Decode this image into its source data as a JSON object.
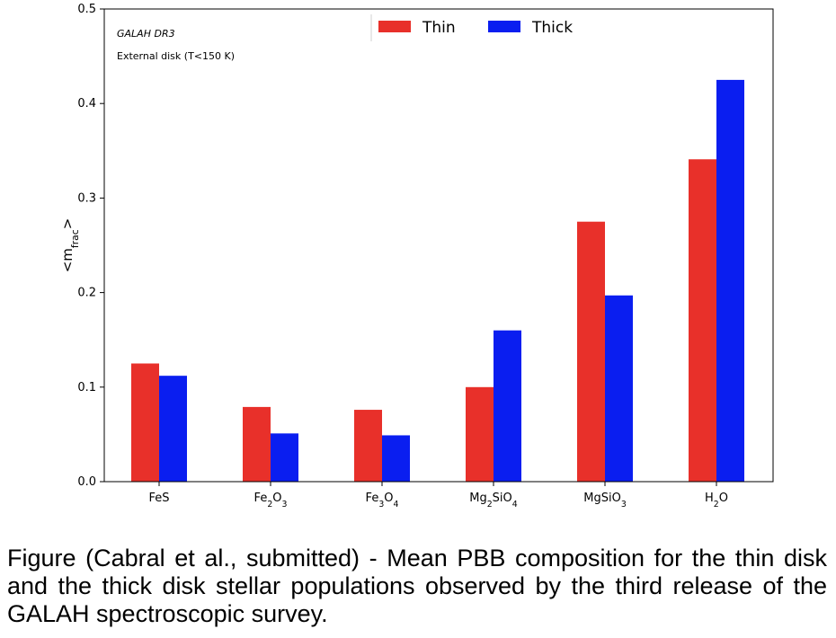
{
  "chart_data": {
    "type": "bar",
    "categories": [
      {
        "base": "FeS",
        "parts": [
          [
            "FeS",
            ""
          ]
        ]
      },
      {
        "base": "Fe2O3",
        "parts": [
          [
            "Fe",
            ""
          ],
          [
            "2",
            "sub"
          ],
          [
            "O",
            ""
          ],
          [
            "3",
            "sub"
          ]
        ]
      },
      {
        "base": "Fe3O4",
        "parts": [
          [
            "Fe",
            ""
          ],
          [
            "3",
            "sub"
          ],
          [
            "O",
            ""
          ],
          [
            "4",
            "sub"
          ]
        ]
      },
      {
        "base": "Mg2SiO4",
        "parts": [
          [
            "Mg",
            ""
          ],
          [
            "2",
            "sub"
          ],
          [
            "SiO",
            ""
          ],
          [
            "4",
            "sub"
          ]
        ]
      },
      {
        "base": "MgSiO3",
        "parts": [
          [
            "MgSiO",
            ""
          ],
          [
            "3",
            "sub"
          ]
        ]
      },
      {
        "base": "H2O",
        "parts": [
          [
            "H",
            ""
          ],
          [
            "2",
            "sub"
          ],
          [
            "O",
            ""
          ]
        ]
      }
    ],
    "series": [
      {
        "name": "Thin",
        "color": "#e8302a",
        "values": [
          0.125,
          0.079,
          0.076,
          0.1,
          0.275,
          0.341
        ]
      },
      {
        "name": "Thick",
        "color": "#0a1ef0",
        "values": [
          0.112,
          0.051,
          0.049,
          0.16,
          0.197,
          0.425
        ]
      }
    ],
    "ylabel_parts": [
      [
        "<m",
        ""
      ],
      [
        "frac",
        "sub"
      ],
      [
        ">",
        ""
      ]
    ],
    "ylim": [
      0.0,
      0.5
    ],
    "yticks": [
      "0.0",
      "0.1",
      "0.2",
      "0.3",
      "0.4",
      "0.5"
    ],
    "annotations": [
      "GALAH DR3",
      "External disk (T<150 K)"
    ],
    "legend_position": "top-center",
    "grid": false
  },
  "caption": "Figure (Cabral et al., submitted) - Mean PBB composition for the thin disk and the thick disk stellar populations observed by the third release of the GALAH spectroscopic survey."
}
